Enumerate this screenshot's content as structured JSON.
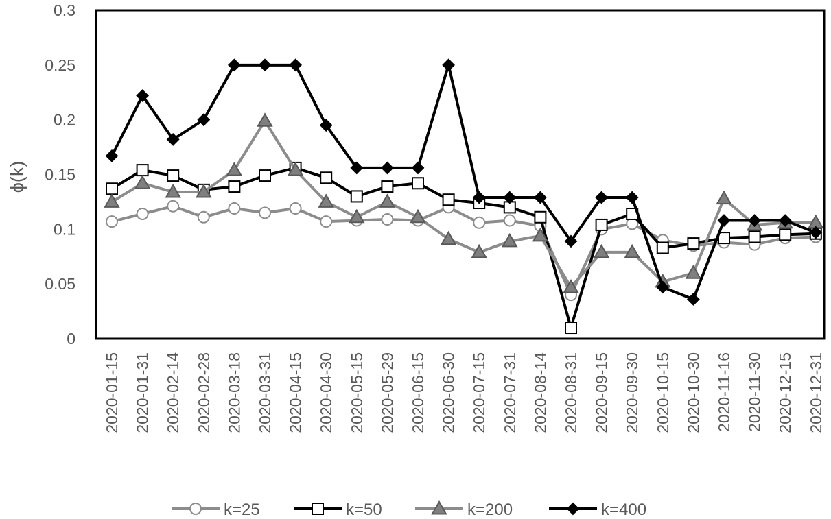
{
  "chart_data": {
    "type": "line",
    "ylabel": "ϕ(k)",
    "ylim": [
      0,
      0.3
    ],
    "y_ticks": [
      "0",
      "0.05",
      "0.1",
      "0.15",
      "0.2",
      "0.25",
      "0.3"
    ],
    "grid": false,
    "legend_position": "bottom",
    "categories": [
      "2020-01-15",
      "2020-01-31",
      "2020-02-14",
      "2020-02-28",
      "2020-03-18",
      "2020-03-31",
      "2020-04-15",
      "2020-04-30",
      "2020-05-15",
      "2020-05-29",
      "2020-06-15",
      "2020-06-30",
      "2020-07-15",
      "2020-07-31",
      "2020-08-14",
      "2020-08-31",
      "2020-09-15",
      "2020-09-30",
      "2020-10-15",
      "2020-10-30",
      "2020-11-16",
      "2020-11-30",
      "2020-12-15",
      "2020-12-31"
    ],
    "series": [
      {
        "name": "k=25",
        "marker": "circle",
        "color": "#8c8c8c",
        "values": [
          0.107,
          0.114,
          0.121,
          0.111,
          0.119,
          0.115,
          0.119,
          0.107,
          0.108,
          0.109,
          0.108,
          0.12,
          0.106,
          0.108,
          0.103,
          0.04,
          0.1,
          0.105,
          0.09,
          0.085,
          0.088,
          0.086,
          0.092,
          0.093
        ]
      },
      {
        "name": "k=50",
        "marker": "square",
        "color": "#000000",
        "values": [
          0.137,
          0.154,
          0.149,
          0.136,
          0.139,
          0.149,
          0.156,
          0.147,
          0.13,
          0.139,
          0.142,
          0.127,
          0.124,
          0.12,
          0.111,
          0.01,
          0.104,
          0.114,
          0.083,
          0.087,
          0.092,
          0.093,
          0.095,
          0.096
        ]
      },
      {
        "name": "k=200",
        "marker": "triangle",
        "color": "#8c8c8c",
        "values": [
          0.125,
          0.142,
          0.134,
          0.134,
          0.154,
          0.199,
          0.154,
          0.125,
          0.111,
          0.125,
          0.111,
          0.091,
          0.079,
          0.089,
          0.094,
          0.047,
          0.079,
          0.079,
          0.052,
          0.06,
          0.128,
          0.104,
          0.106,
          0.106
        ]
      },
      {
        "name": "k=400",
        "marker": "diamond",
        "color": "#000000",
        "values": [
          0.167,
          0.222,
          0.182,
          0.2,
          0.25,
          0.25,
          0.25,
          0.195,
          0.156,
          0.156,
          0.156,
          0.25,
          0.129,
          0.129,
          0.129,
          0.089,
          0.129,
          0.129,
          0.047,
          0.036,
          0.108,
          0.108,
          0.108,
          0.097
        ]
      }
    ]
  }
}
